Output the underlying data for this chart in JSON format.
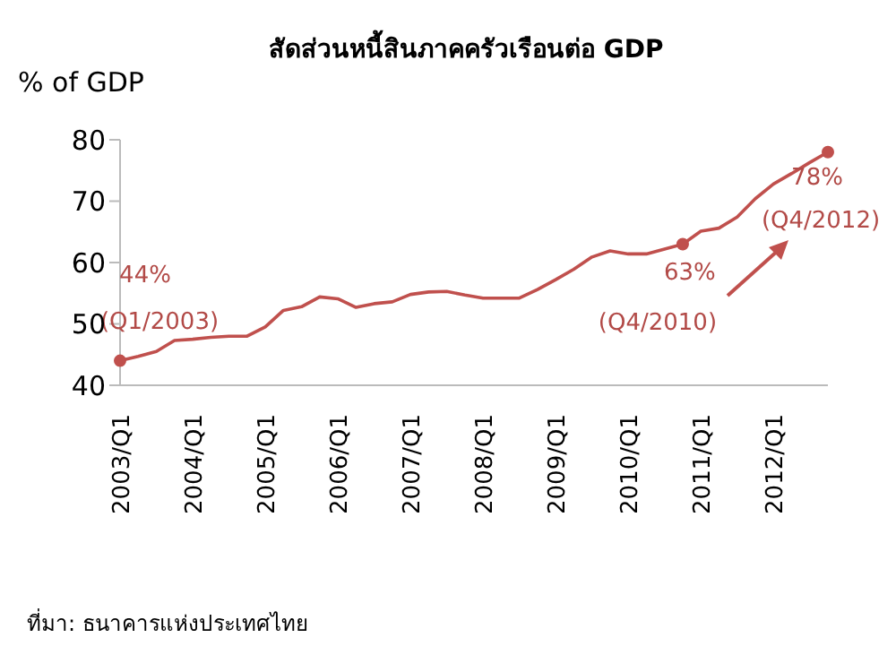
{
  "chart_data": {
    "type": "line",
    "title": "สัดส่วนหนี้สินภาคครัวเรือนต่อ GDP",
    "ylabel": "% of GDP",
    "categories": [
      "2003/Q1",
      null,
      null,
      null,
      "2004/Q1",
      null,
      null,
      null,
      "2005/Q1",
      null,
      null,
      null,
      "2006/Q1",
      null,
      null,
      null,
      "2007/Q1",
      null,
      null,
      null,
      "2008/Q1",
      null,
      null,
      null,
      "2009/Q1",
      null,
      null,
      null,
      "2010/Q1",
      null,
      null,
      null,
      "2011/Q1",
      null,
      null,
      null,
      "2012/Q1",
      null,
      null,
      null
    ],
    "series": [
      {
        "color": "#c0504d",
        "values": [
          44,
          44.7,
          45.5,
          47.3,
          47.5,
          47.8,
          48,
          48,
          49.5,
          52.2,
          52.8,
          54.4,
          54.1,
          52.7,
          53.3,
          53.6,
          54.8,
          55.2,
          55.3,
          54.7,
          54.2,
          54.2,
          54.2,
          55.6,
          57.2,
          58.9,
          60.9,
          61.9,
          61.4,
          61.4,
          62.2,
          63,
          65.1,
          65.6,
          67.4,
          70.4,
          72.8,
          74.5,
          76.3,
          78
        ]
      }
    ],
    "ylim": [
      40,
      80
    ],
    "yticks": [
      40,
      50,
      60,
      70,
      80
    ],
    "marker": "none",
    "line_style": "solid",
    "annotations": [
      {
        "text": "44%\n(Q1/2003)",
        "y": 44
      },
      {
        "text": "63%\n(Q4/2010)",
        "y": 63
      },
      {
        "text": "78%\n(Q4/2012)",
        "y": 78
      },
      "ที่มา: ธนาคารแห่งประเทศไทย"
    ]
  }
}
